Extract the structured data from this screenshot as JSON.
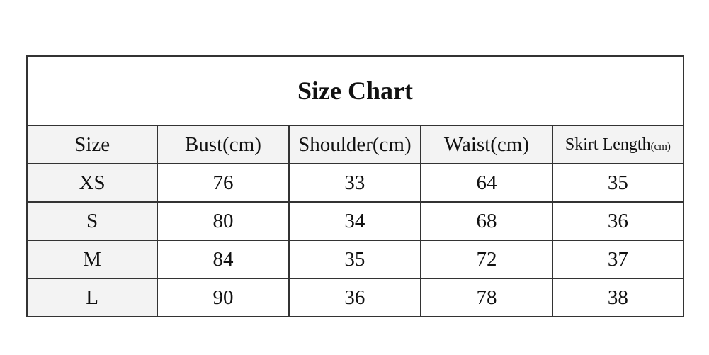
{
  "table": {
    "title": "Size Chart",
    "headers": [
      "Size",
      "Bust(cm)",
      "Shoulder(cm)",
      "Waist(cm)",
      {
        "main": "Skirt Length",
        "unit": "(cm)"
      }
    ],
    "rows": [
      [
        "XS",
        76,
        33,
        64,
        35
      ],
      [
        "S",
        80,
        34,
        68,
        36
      ],
      [
        "M",
        84,
        35,
        72,
        37
      ],
      [
        "L",
        90,
        36,
        78,
        38
      ]
    ]
  }
}
